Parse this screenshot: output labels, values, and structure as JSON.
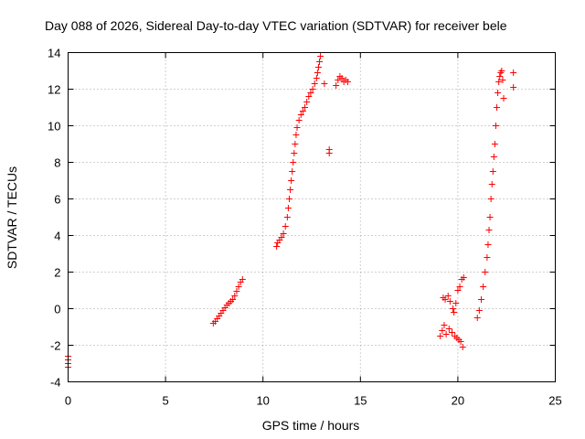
{
  "chart_data": {
    "type": "scatter",
    "title": "Day 088 of 2026, Sidereal Day-to-day VTEC variation (SDTVAR) for receiver bele",
    "xlabel": "GPS time / hours",
    "ylabel": "SDTVAR / TECUs",
    "xlim": [
      0,
      25
    ],
    "ylim": [
      -4,
      14
    ],
    "xticks": [
      0,
      5,
      10,
      15,
      20,
      25
    ],
    "yticks": [
      -4,
      -2,
      0,
      2,
      4,
      6,
      8,
      10,
      12,
      14
    ],
    "grid": true,
    "marker": "+",
    "color": "#ff0000",
    "series": [
      {
        "name": "SDTVAR",
        "points": [
          [
            0.0,
            -2.6
          ],
          [
            0.0,
            -2.8
          ],
          [
            0.0,
            -3.0
          ],
          [
            0.0,
            -3.2
          ],
          [
            7.45,
            -0.8
          ],
          [
            7.55,
            -0.7
          ],
          [
            7.65,
            -0.55
          ],
          [
            7.75,
            -0.4
          ],
          [
            7.85,
            -0.25
          ],
          [
            7.95,
            -0.1
          ],
          [
            8.05,
            0.05
          ],
          [
            8.15,
            0.2
          ],
          [
            8.25,
            0.3
          ],
          [
            8.35,
            0.4
          ],
          [
            8.45,
            0.5
          ],
          [
            8.55,
            0.7
          ],
          [
            8.65,
            0.95
          ],
          [
            8.75,
            1.2
          ],
          [
            8.85,
            1.45
          ],
          [
            8.95,
            1.6
          ],
          [
            10.7,
            3.4
          ],
          [
            10.75,
            3.6
          ],
          [
            10.85,
            3.75
          ],
          [
            10.95,
            3.9
          ],
          [
            11.05,
            4.1
          ],
          [
            11.15,
            4.5
          ],
          [
            11.25,
            5.0
          ],
          [
            11.3,
            5.5
          ],
          [
            11.35,
            6.0
          ],
          [
            11.4,
            6.5
          ],
          [
            11.45,
            7.0
          ],
          [
            11.5,
            7.5
          ],
          [
            11.55,
            8.0
          ],
          [
            11.6,
            8.5
          ],
          [
            11.65,
            9.0
          ],
          [
            11.7,
            9.5
          ],
          [
            11.75,
            9.9
          ],
          [
            11.85,
            10.3
          ],
          [
            11.95,
            10.6
          ],
          [
            12.05,
            10.8
          ],
          [
            12.15,
            11.0
          ],
          [
            12.25,
            11.3
          ],
          [
            12.35,
            11.6
          ],
          [
            12.45,
            11.8
          ],
          [
            12.55,
            12.0
          ],
          [
            12.65,
            12.3
          ],
          [
            12.75,
            12.6
          ],
          [
            12.8,
            12.9
          ],
          [
            12.85,
            13.2
          ],
          [
            12.9,
            13.5
          ],
          [
            12.95,
            13.8
          ],
          [
            13.15,
            12.3
          ],
          [
            13.4,
            8.7
          ],
          [
            13.4,
            8.5
          ],
          [
            13.75,
            12.2
          ],
          [
            13.85,
            12.5
          ],
          [
            13.95,
            12.7
          ],
          [
            14.05,
            12.6
          ],
          [
            14.15,
            12.4
          ],
          [
            14.25,
            12.5
          ],
          [
            14.35,
            12.4
          ],
          [
            19.1,
            -1.5
          ],
          [
            19.2,
            -1.2
          ],
          [
            19.25,
            0.6
          ],
          [
            19.3,
            -0.9
          ],
          [
            19.35,
            0.5
          ],
          [
            19.4,
            -1.4
          ],
          [
            19.5,
            0.7
          ],
          [
            19.55,
            -1.1
          ],
          [
            19.6,
            0.4
          ],
          [
            19.7,
            -1.3
          ],
          [
            19.75,
            0.0
          ],
          [
            19.8,
            -0.2
          ],
          [
            19.85,
            -1.5
          ],
          [
            19.9,
            0.3
          ],
          [
            19.95,
            -1.6
          ],
          [
            20.0,
            1.0
          ],
          [
            20.05,
            -1.7
          ],
          [
            20.1,
            1.2
          ],
          [
            20.15,
            -1.8
          ],
          [
            20.2,
            1.6
          ],
          [
            20.25,
            -2.1
          ],
          [
            20.3,
            1.7
          ],
          [
            21.0,
            -0.5
          ],
          [
            21.1,
            -0.1
          ],
          [
            21.2,
            0.5
          ],
          [
            21.3,
            1.2
          ],
          [
            21.4,
            2.0
          ],
          [
            21.5,
            2.8
          ],
          [
            21.55,
            3.5
          ],
          [
            21.6,
            4.3
          ],
          [
            21.65,
            5.0
          ],
          [
            21.7,
            6.0
          ],
          [
            21.75,
            6.8
          ],
          [
            21.8,
            7.5
          ],
          [
            21.85,
            8.3
          ],
          [
            21.9,
            9.0
          ],
          [
            21.95,
            10.0
          ],
          [
            22.0,
            11.0
          ],
          [
            22.05,
            11.8
          ],
          [
            22.1,
            12.4
          ],
          [
            22.15,
            12.7
          ],
          [
            22.2,
            12.9
          ],
          [
            22.25,
            13.0
          ],
          [
            22.3,
            12.5
          ],
          [
            22.35,
            11.5
          ],
          [
            22.85,
            12.9
          ],
          [
            22.85,
            12.1
          ]
        ]
      }
    ]
  }
}
